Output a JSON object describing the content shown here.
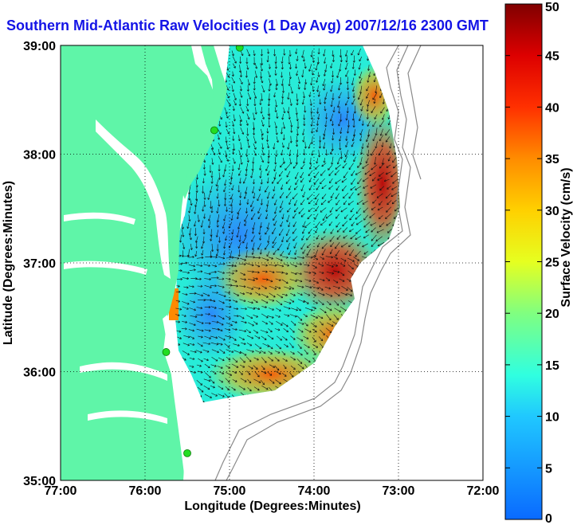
{
  "title": "Southern Mid-Atlantic Raw Velocities (1 Day Avg) 2007/12/16 2300 GMT",
  "axes": {
    "xlabel": "Longitude (Degrees:Minutes)",
    "ylabel": "Latitude (Degrees:Minutes)",
    "x_ticks": [
      "77:00",
      "76:00",
      "75:00",
      "74:00",
      "73:00",
      "72:00"
    ],
    "y_ticks": [
      "39:00",
      "38:00",
      "37:00",
      "36:00",
      "35:00"
    ],
    "xlim": [
      -77,
      -72
    ],
    "ylim": [
      35,
      39
    ],
    "grid": true
  },
  "colorbar": {
    "label": "Surface Velocity (cm/s)",
    "ticks": [
      "0",
      "5",
      "10",
      "15",
      "20",
      "25",
      "30",
      "35",
      "40",
      "45",
      "50"
    ],
    "range": [
      0,
      50
    ]
  },
  "colors": {
    "land": "#5ff5a8",
    "title": "#1414e6",
    "station": "#22dd22"
  },
  "stations": [
    {
      "lon": -74.88,
      "lat": 38.98
    },
    {
      "lon": -75.18,
      "lat": 38.22
    },
    {
      "lon": -75.75,
      "lat": 36.18
    },
    {
      "lon": -75.5,
      "lat": 35.25
    }
  ]
}
